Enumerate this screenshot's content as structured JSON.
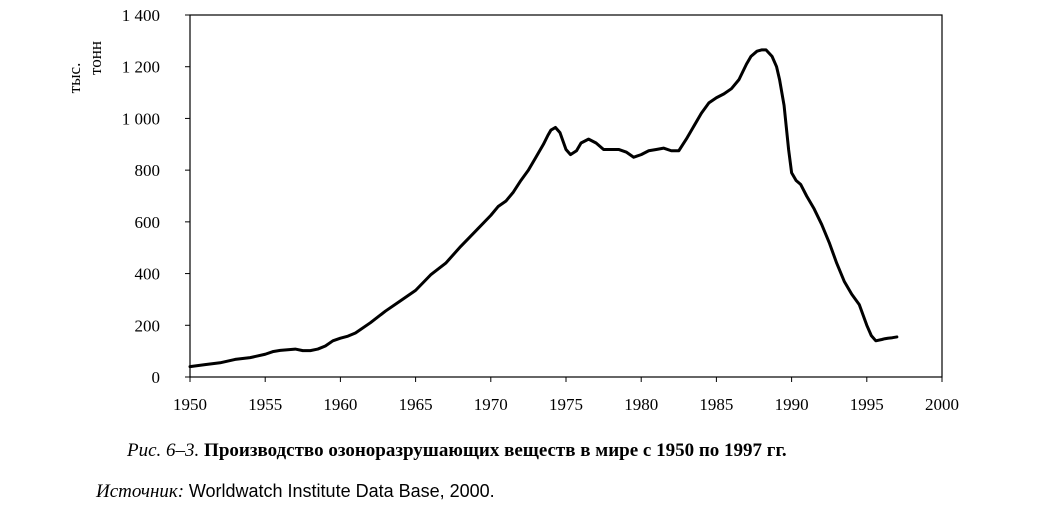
{
  "chart_data": {
    "type": "line",
    "unit_label": [
      "тыс.",
      "тонн"
    ],
    "x_ticks": [
      "1950",
      "1955",
      "1960",
      "1965",
      "1970",
      "1975",
      "1980",
      "1985",
      "1990",
      "1995",
      "2000"
    ],
    "y_ticks": [
      "0",
      "200",
      "400",
      "600",
      "800",
      "1 000",
      "1 200",
      "1 400"
    ],
    "xlim": [
      1950,
      2000
    ],
    "ylim": [
      0,
      1400
    ],
    "grid": false,
    "legend": "none",
    "line_color": "#000000",
    "x": [
      1950,
      1951,
      1952,
      1953,
      1954,
      1955,
      1955.5,
      1956,
      1957,
      1957.5,
      1958,
      1958.5,
      1959,
      1959.5,
      1960,
      1960.5,
      1961,
      1962,
      1963,
      1964,
      1965,
      1966,
      1967,
      1968,
      1969,
      1970,
      1970.5,
      1971,
      1971.5,
      1972,
      1972.5,
      1973,
      1973.5,
      1973.8,
      1974,
      1974.3,
      1974.6,
      1975,
      1975.3,
      1975.7,
      1976,
      1976.5,
      1977,
      1977.5,
      1978,
      1978.5,
      1979,
      1979.5,
      1980,
      1980.5,
      1981,
      1981.5,
      1982,
      1982.5,
      1983,
      1983.5,
      1984,
      1984.5,
      1985,
      1985.5,
      1986,
      1986.5,
      1987,
      1987.3,
      1987.7,
      1988,
      1988.3,
      1988.7,
      1989,
      1989.2,
      1989.5,
      1989.8,
      1990,
      1990.3,
      1990.6,
      1991,
      1991.5,
      1992,
      1992.5,
      1993,
      1993.5,
      1994,
      1994.5,
      1995,
      1995.3,
      1995.6,
      1996,
      1996.2,
      1996.4,
      1996.7,
      1997
    ],
    "y": [
      40,
      48,
      55,
      68,
      75,
      88,
      98,
      103,
      108,
      102,
      102,
      108,
      120,
      140,
      150,
      158,
      170,
      210,
      255,
      295,
      335,
      395,
      440,
      505,
      565,
      625,
      660,
      680,
      715,
      760,
      800,
      850,
      900,
      935,
      955,
      965,
      945,
      880,
      860,
      875,
      905,
      920,
      905,
      880,
      880,
      880,
      870,
      850,
      860,
      875,
      880,
      885,
      875,
      875,
      920,
      970,
      1020,
      1060,
      1080,
      1095,
      1115,
      1150,
      1210,
      1240,
      1260,
      1265,
      1265,
      1240,
      1200,
      1150,
      1050,
      880,
      790,
      760,
      745,
      700,
      650,
      590,
      520,
      440,
      370,
      320,
      280,
      200,
      160,
      140,
      145,
      148,
      150,
      152,
      155
    ]
  },
  "caption": {
    "number": "Рис. 6–3.",
    "title": "Производство озоноразрушающих веществ в мире с 1950 по 1997 гг."
  },
  "source": {
    "label": "Источник:",
    "text": "Worldwatch Institute Data Base, 2000."
  }
}
